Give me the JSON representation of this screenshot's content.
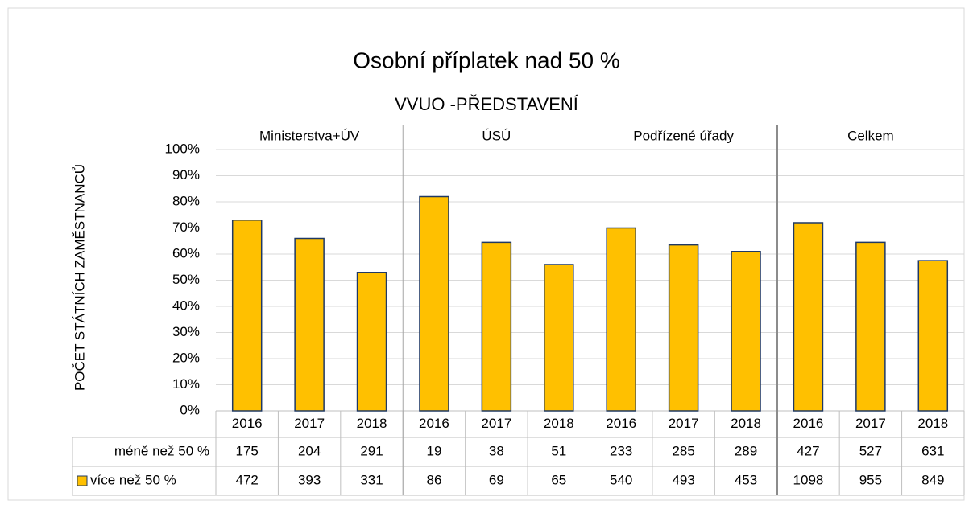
{
  "chart_data": {
    "type": "bar",
    "title": "Osobní příplatek nad 50 %",
    "subtitle": "VVUO -PŘEDSTAVENÍ",
    "ylabel": "POČET STÁTNÍCH ZAMĚSTNANCŮ",
    "groups": [
      "Ministerstva+ÚV",
      "ÚSÚ",
      "Podřízené úřady",
      "Celkem"
    ],
    "categories": [
      "2016",
      "2017",
      "2018",
      "2016",
      "2017",
      "2018",
      "2016",
      "2017",
      "2018",
      "2016",
      "2017",
      "2018"
    ],
    "series": [
      {
        "name": "méně než 50 %",
        "table": [
          175,
          204,
          291,
          19,
          38,
          51,
          233,
          285,
          289,
          427,
          527,
          631
        ]
      },
      {
        "name": "více než 50 %",
        "color": "#ffc000",
        "edge": "#1f3864",
        "values": [
          73,
          66,
          53,
          82,
          64.5,
          56,
          70,
          63.5,
          61,
          72,
          64.5,
          57.5
        ],
        "table": [
          472,
          393,
          331,
          86,
          69,
          65,
          540,
          493,
          453,
          1098,
          955,
          849
        ]
      }
    ],
    "ylim": [
      0,
      100
    ],
    "yticks": [
      {
        "value": 0,
        "label": "0%"
      },
      {
        "value": 10,
        "label": "10%"
      },
      {
        "value": 20,
        "label": "20%"
      },
      {
        "value": 30,
        "label": "30%"
      },
      {
        "value": 40,
        "label": "40%"
      },
      {
        "value": 50,
        "label": "50%"
      },
      {
        "value": 60,
        "label": "60%"
      },
      {
        "value": 70,
        "label": "70%"
      },
      {
        "value": 80,
        "label": "80%"
      },
      {
        "value": 90,
        "label": "90%"
      },
      {
        "value": 100,
        "label": "100%"
      }
    ],
    "grid": true
  }
}
